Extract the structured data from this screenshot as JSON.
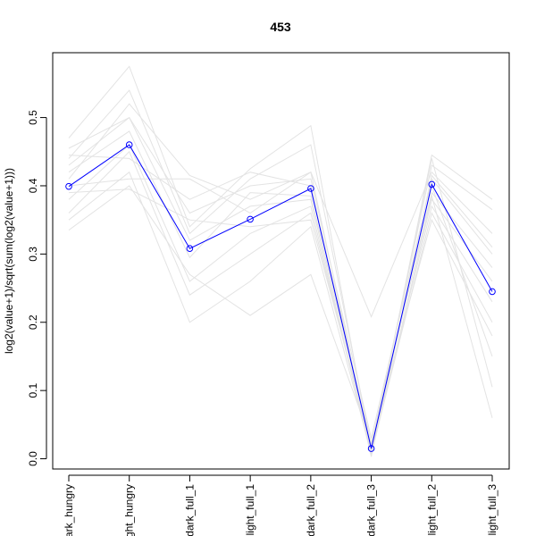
{
  "chart_data": {
    "type": "line",
    "title": "453",
    "xlabel": "",
    "ylabel": "log2(value+1)/sqrt(sum(log2(value+1)))",
    "ylim": [
      -0.015,
      0.595
    ],
    "yticks": [
      "0.0",
      "0.1",
      "0.2",
      "0.3",
      "0.4",
      "0.5"
    ],
    "yticks_values": [
      0.0,
      0.1,
      0.2,
      0.3,
      0.4,
      0.5
    ],
    "categories": [
      "dark_hungry",
      "light_hungry",
      "dark_full_1",
      "light_full_1",
      "dark_full_2",
      "dark_full_3",
      "light_full_2",
      "light_full_3"
    ],
    "grid": false,
    "series": [
      {
        "values": [
          0.399,
          0.46,
          0.308,
          0.351,
          0.396,
          0.015,
          0.402,
          0.245
        ],
        "color": "#0000ff",
        "markers": true
      },
      {
        "values": [
          0.47,
          0.575,
          0.34,
          0.425,
          0.488,
          0.01,
          0.445,
          0.38
        ],
        "color": "#e3e3e3"
      },
      {
        "values": [
          0.44,
          0.54,
          0.33,
          0.41,
          0.46,
          0.02,
          0.43,
          0.365
        ],
        "color": "#e3e3e3"
      },
      {
        "values": [
          0.41,
          0.52,
          0.415,
          0.38,
          0.42,
          0.208,
          0.42,
          0.33
        ],
        "color": "#e3e3e3"
      },
      {
        "values": [
          0.455,
          0.5,
          0.36,
          0.4,
          0.41,
          0.03,
          0.41,
          0.3
        ],
        "color": "#e3e3e3"
      },
      {
        "values": [
          0.42,
          0.48,
          0.295,
          0.39,
          0.385,
          0.015,
          0.39,
          0.28
        ],
        "color": "#e3e3e3"
      },
      {
        "values": [
          0.38,
          0.46,
          0.26,
          0.33,
          0.37,
          0.005,
          0.38,
          0.26
        ],
        "color": "#e3e3e3"
      },
      {
        "values": [
          0.36,
          0.45,
          0.24,
          0.3,
          0.36,
          0.012,
          0.37,
          0.23
        ],
        "color": "#e3e3e3"
      },
      {
        "values": [
          0.35,
          0.42,
          0.2,
          0.26,
          0.34,
          0.008,
          0.36,
          0.2
        ],
        "color": "#e3e3e3"
      },
      {
        "values": [
          0.335,
          0.4,
          0.27,
          0.21,
          0.27,
          0.025,
          0.35,
          0.18
        ],
        "color": "#e3e3e3"
      },
      {
        "values": [
          0.445,
          0.44,
          0.38,
          0.42,
          0.4,
          0.018,
          0.4,
          0.15
        ],
        "color": "#e3e3e3"
      },
      {
        "values": [
          0.4,
          0.41,
          0.41,
          0.36,
          0.42,
          0.01,
          0.44,
          0.105
        ],
        "color": "#e3e3e3"
      },
      {
        "values": [
          0.39,
          0.395,
          0.35,
          0.34,
          0.35,
          0.022,
          0.385,
          0.06
        ],
        "color": "#e3e3e3"
      },
      {
        "values": [
          0.43,
          0.5,
          0.32,
          0.37,
          0.38,
          0.003,
          0.415,
          0.31
        ],
        "color": "#e3e3e3"
      }
    ]
  }
}
